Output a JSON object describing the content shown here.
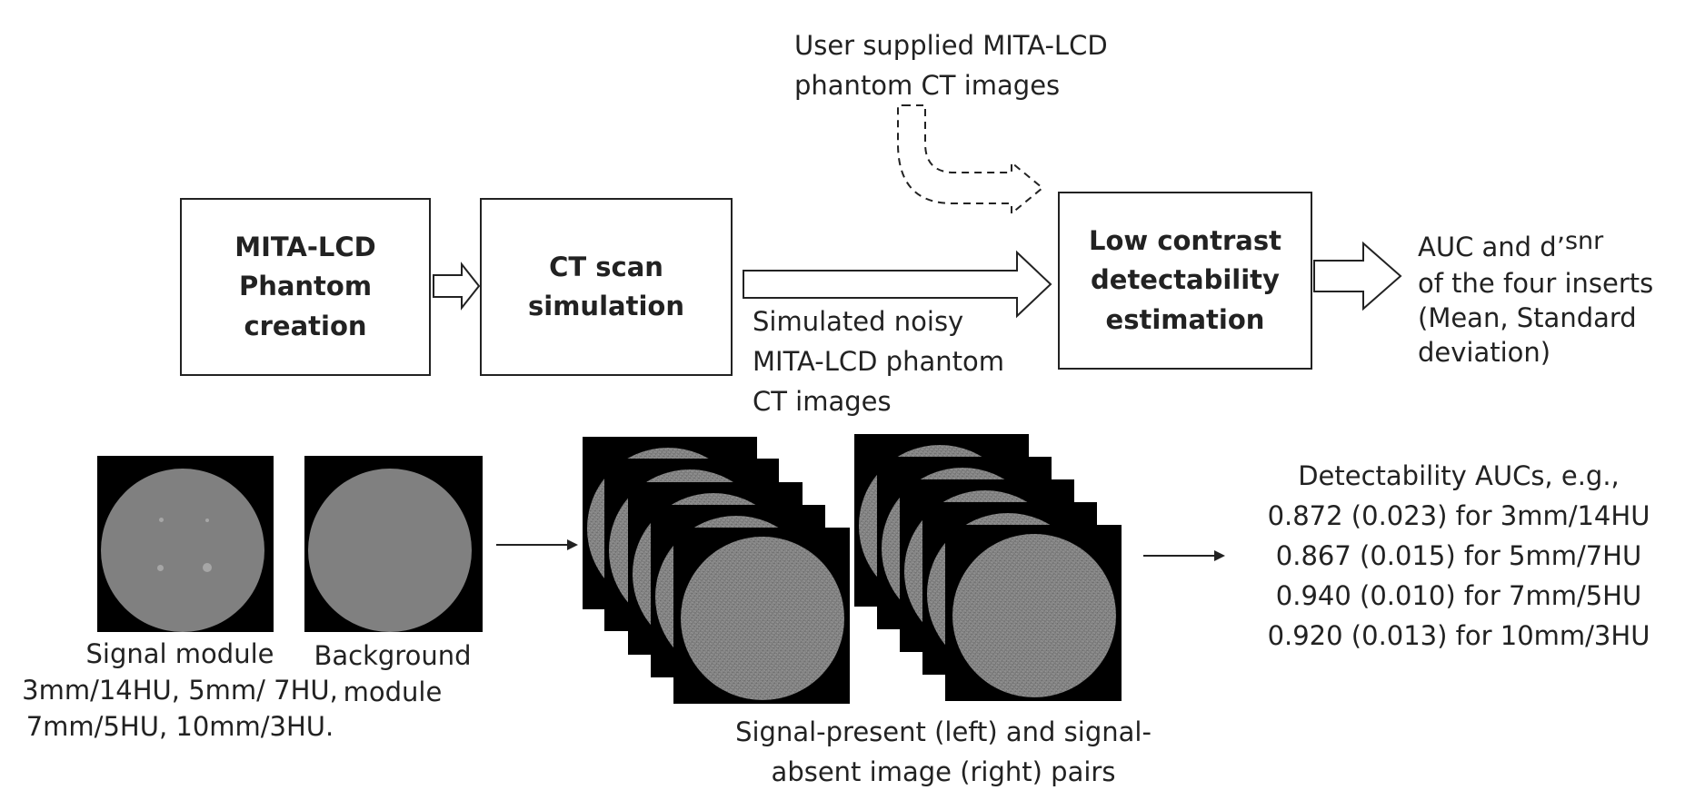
{
  "boxes": {
    "phantom_creation": "MITA-LCD\nPhantom\ncreation",
    "ct_scan": "CT scan\nsimulation",
    "lcd_estimation": "Low contrast\ndetectability\nestimation"
  },
  "labels": {
    "user_supplied": "User supplied MITA-LCD\nphantom CT images",
    "simulated_noisy": "Simulated noisy\nMITA-LCD phantom\nCT images",
    "output_auc_main": "AUC and d’",
    "output_auc_sub": "snr",
    "output_rest": "of the four inserts\n(Mean, Standard\ndeviation)",
    "signal_module": "Signal module\n3mm/14HU, 5mm/ 7HU,\n7mm/5HU, 10mm/3HU.",
    "background_module": "Background\nmodule",
    "pairs_caption": "Signal-present (left) and signal-\nabsent image (right) pairs"
  },
  "results": {
    "header": "Detectability AUCs, e.g.,",
    "lines": [
      "0.872 (0.023) for 3mm/14HU",
      "0.867 (0.015) for 5mm/7HU",
      "0.940 (0.010) for 7mm/5HU",
      "0.920 (0.013) for 10mm/3HU"
    ]
  },
  "colors": {
    "line": "#222222",
    "phantom_gray": "#808080",
    "insert_gray": "#a6a6a6"
  }
}
